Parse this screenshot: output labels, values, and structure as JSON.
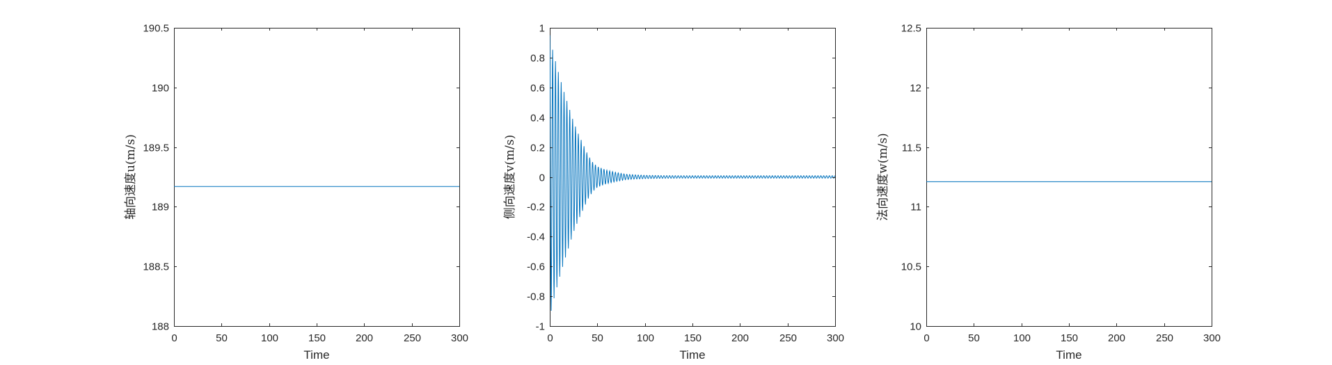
{
  "colors": {
    "series": "#0072BD",
    "axis": "#262626"
  },
  "chart_data": [
    {
      "type": "line",
      "title": "",
      "xlabel": "Time",
      "ylabel": "轴向速度u(m/s)",
      "xlim": [
        0,
        300
      ],
      "ylim": [
        188,
        190.5
      ],
      "xticks": [
        "0",
        "50",
        "100",
        "150",
        "200",
        "250",
        "300"
      ],
      "yticks": [
        "188",
        "188.5",
        "189",
        "189.5",
        "190",
        "190.5"
      ],
      "grid": false,
      "series": [
        {
          "kind": "constant",
          "x": [
            0,
            300
          ],
          "y": [
            189.17,
            189.17
          ]
        }
      ]
    },
    {
      "type": "line",
      "title": "",
      "xlabel": "Time",
      "ylabel": "侧向速度v(m/s)",
      "xlim": [
        0,
        300
      ],
      "ylim": [
        -1,
        1
      ],
      "xticks": [
        "0",
        "50",
        "100",
        "150",
        "200",
        "250",
        "300"
      ],
      "yticks": [
        "-1",
        "-0.8",
        "-0.6",
        "-0.4",
        "-0.2",
        "0",
        "0.2",
        "0.4",
        "0.6",
        "0.8",
        "1"
      ],
      "grid": false,
      "series": [
        {
          "kind": "damped-oscillation",
          "envelope_t": [
            0,
            2,
            5,
            10,
            15,
            20,
            25,
            30,
            35,
            40,
            45,
            50,
            60,
            70,
            80,
            90,
            100,
            120,
            150,
            200,
            250,
            300
          ],
          "envelope_a": [
            0.95,
            0.88,
            0.8,
            0.68,
            0.57,
            0.47,
            0.37,
            0.29,
            0.22,
            0.15,
            0.1,
            0.07,
            0.045,
            0.03,
            0.018,
            0.014,
            0.011,
            0.009,
            0.008,
            0.008,
            0.008,
            0.008
          ],
          "period": 3
        }
      ]
    },
    {
      "type": "line",
      "title": "",
      "xlabel": "Time",
      "ylabel": "法向速度w(m/s)",
      "xlim": [
        0,
        300
      ],
      "ylim": [
        10,
        12.5
      ],
      "xticks": [
        "0",
        "50",
        "100",
        "150",
        "200",
        "250",
        "300"
      ],
      "yticks": [
        "10",
        "10.5",
        "11",
        "11.5",
        "12",
        "12.5"
      ],
      "grid": false,
      "series": [
        {
          "kind": "constant",
          "x": [
            0,
            300
          ],
          "y": [
            11.21,
            11.21
          ]
        }
      ]
    }
  ]
}
